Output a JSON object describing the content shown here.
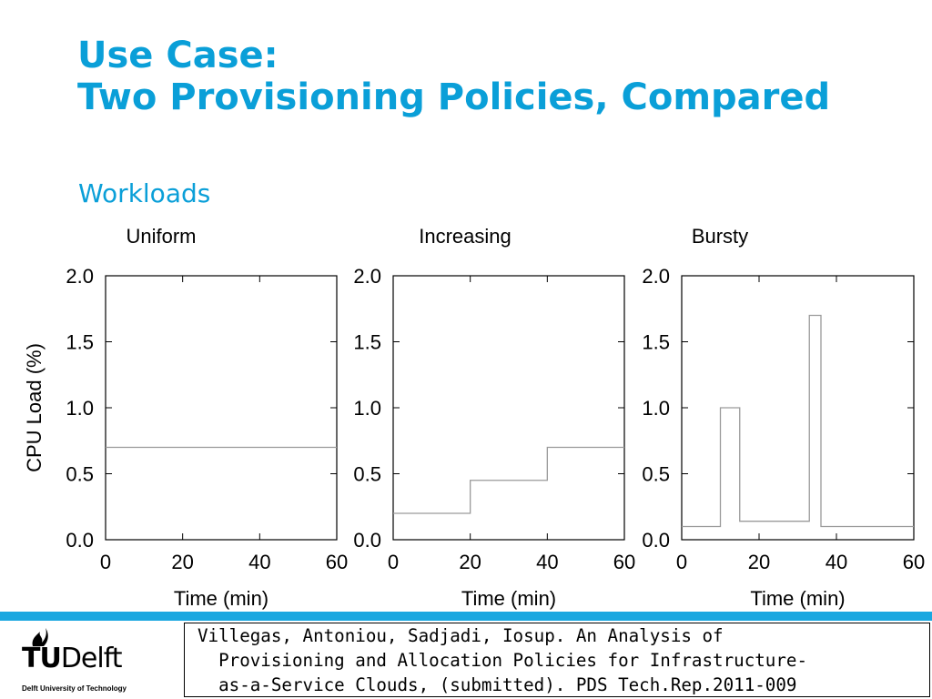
{
  "slide": {
    "title_line1": "Use Case:",
    "title_line2": "Two Provisioning Policies, Compared",
    "subtitle": "Workloads"
  },
  "colors": {
    "accent": "#0a9fd8",
    "band": "#1aa7e0"
  },
  "chart_data": [
    {
      "type": "line",
      "title": "Uniform",
      "xlabel": "Time (min)",
      "ylabel": "CPU Load (%)",
      "xlim": [
        0,
        60
      ],
      "ylim": [
        0.0,
        2.0
      ],
      "xticks": [
        "0",
        "20",
        "40",
        "60"
      ],
      "yticks": [
        "0.0",
        "0.5",
        "1.0",
        "1.5",
        "2.0"
      ],
      "x": [
        0,
        60
      ],
      "y": [
        0.7,
        0.7
      ]
    },
    {
      "type": "line",
      "title": "Increasing",
      "xlabel": "Time (min)",
      "ylabel": "",
      "xlim": [
        0,
        60
      ],
      "ylim": [
        0.0,
        2.0
      ],
      "xticks": [
        "0",
        "20",
        "40",
        "60"
      ],
      "yticks": [
        "0.0",
        "0.5",
        "1.0",
        "1.5",
        "2.0"
      ],
      "x": [
        0,
        20,
        20,
        40,
        40,
        60
      ],
      "y": [
        0.2,
        0.2,
        0.45,
        0.45,
        0.7,
        0.7
      ]
    },
    {
      "type": "line",
      "title": "Bursty",
      "xlabel": "Time (min)",
      "ylabel": "",
      "xlim": [
        0,
        60
      ],
      "ylim": [
        0.0,
        2.0
      ],
      "xticks": [
        "0",
        "20",
        "40",
        "60"
      ],
      "yticks": [
        "0.0",
        "0.5",
        "1.0",
        "1.5",
        "2.0"
      ],
      "x": [
        0,
        10,
        10,
        15,
        15,
        33,
        33,
        36,
        36,
        60
      ],
      "y": [
        0.1,
        0.1,
        1.0,
        1.0,
        0.14,
        0.14,
        1.7,
        1.7,
        0.1,
        0.1
      ]
    }
  ],
  "logo": {
    "tu": "TU",
    "delft": "Delft",
    "sub": "Delft University of Technology"
  },
  "citation": {
    "line1": "Villegas, Antoniou, Sadjadi, Iosup. An Analysis of",
    "line2": "  Provisioning and Allocation Policies for Infrastructure-",
    "line3": "  as-a-Service Clouds, (submitted). PDS Tech.Rep.2011-009"
  }
}
